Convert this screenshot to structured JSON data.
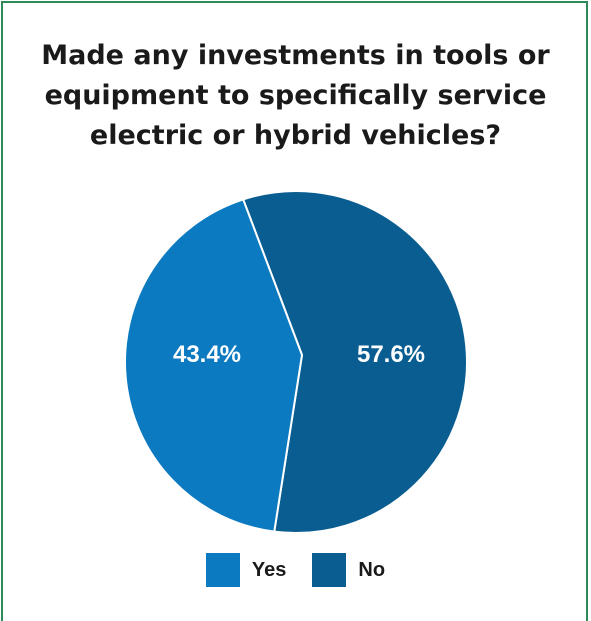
{
  "chart_data": {
    "type": "pie",
    "title": "Made any investments in tools or equipment to specifically service electric or hybrid vehicles?",
    "series": [
      {
        "name": "Yes",
        "value": 43.4,
        "label": "43.4%",
        "color": "#0b7ac0"
      },
      {
        "name": "No",
        "value": 57.6,
        "label": "57.6%",
        "color": "#0a5d91"
      }
    ],
    "legend": "bottom"
  }
}
